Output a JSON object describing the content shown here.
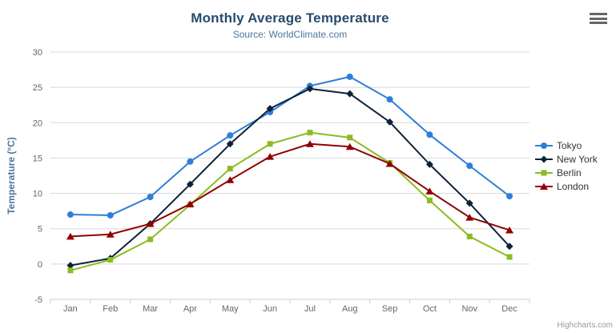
{
  "chart": {
    "title": "Monthly Average Temperature",
    "subtitle": "Source: WorldClimate.com",
    "credits": "Highcharts.com"
  },
  "icons": {
    "context_menu": "hamburger-icon"
  },
  "colors": {
    "title": "#274b6d",
    "subtitle": "#4d759e",
    "axis_title": "#4d759e",
    "tick_label": "#666666",
    "grid_line": "#d8d8d8",
    "axis_line": "#c0d0e0",
    "legend_text": "#333333",
    "credits_text": "#999999"
  },
  "chart_data": {
    "type": "line",
    "title": "Monthly Average Temperature",
    "subtitle": "Source: WorldClimate.com",
    "categories": [
      "Jan",
      "Feb",
      "Mar",
      "Apr",
      "May",
      "Jun",
      "Jul",
      "Aug",
      "Sep",
      "Oct",
      "Nov",
      "Dec"
    ],
    "series": [
      {
        "name": "Tokyo",
        "color": "#2f7ed8",
        "marker": "circle",
        "values": [
          7.0,
          6.9,
          9.5,
          14.5,
          18.2,
          21.5,
          25.2,
          26.5,
          23.3,
          18.3,
          13.9,
          9.6
        ]
      },
      {
        "name": "New York",
        "color": "#0d233a",
        "marker": "diamond",
        "values": [
          -0.2,
          0.8,
          5.7,
          11.3,
          17.0,
          22.0,
          24.8,
          24.1,
          20.1,
          14.1,
          8.6,
          2.5
        ]
      },
      {
        "name": "Berlin",
        "color": "#8bbc21",
        "marker": "square",
        "values": [
          -0.9,
          0.6,
          3.5,
          8.4,
          13.5,
          17.0,
          18.6,
          17.9,
          14.3,
          9.0,
          3.9,
          1.0
        ]
      },
      {
        "name": "London",
        "color": "#910000",
        "marker": "triangle",
        "values": [
          3.9,
          4.2,
          5.7,
          8.5,
          11.9,
          15.2,
          17.0,
          16.6,
          14.2,
          10.3,
          6.6,
          4.8
        ]
      }
    ],
    "xlabel": "",
    "ylabel": "Temperature (°C)",
    "ylim": [
      -5,
      30
    ],
    "ytick_step": 5,
    "grid": true,
    "legend_position": "right"
  }
}
